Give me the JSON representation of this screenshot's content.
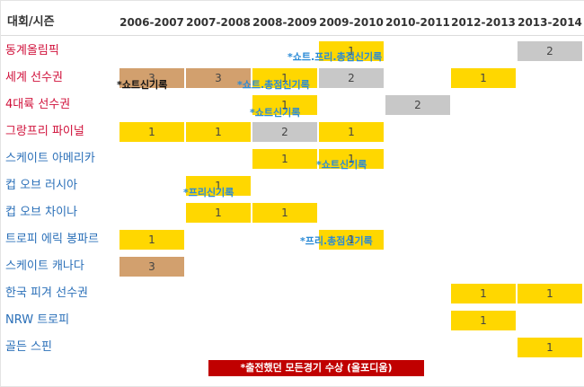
{
  "table": {
    "corner_label": "대회/시즌",
    "seasons": [
      "2006-2007",
      "2007-2008",
      "2008-2009",
      "2009-2010",
      "2010-2011",
      "2012-2013",
      "2013-2014"
    ],
    "rows": [
      {
        "name": "동계올림픽",
        "name_color": "#d0103a",
        "cells": {
          "2009-2010": {
            "value": "1",
            "medal": "gold"
          },
          "2013-2014": {
            "value": "2",
            "medal": "silver"
          }
        }
      },
      {
        "name": "세계 선수권",
        "name_color": "#d0103a",
        "cells": {
          "2006-2007": {
            "value": "3",
            "medal": "bronze"
          },
          "2007-2008": {
            "value": "3",
            "medal": "bronze"
          },
          "2008-2009": {
            "value": "1",
            "medal": "gold"
          },
          "2009-2010": {
            "value": "2",
            "medal": "silver"
          },
          "2012-2013": {
            "value": "1",
            "medal": "gold"
          }
        }
      },
      {
        "name": "4대륙 선수권",
        "name_color": "#d0103a",
        "cells": {
          "2008-2009": {
            "value": "1",
            "medal": "gold"
          },
          "2010-2011": {
            "value": "2",
            "medal": "silver"
          }
        }
      },
      {
        "name": "그랑프리 파이널",
        "name_color": "#d0103a",
        "cells": {
          "2006-2007": {
            "value": "1",
            "medal": "gold"
          },
          "2007-2008": {
            "value": "1",
            "medal": "gold"
          },
          "2008-2009": {
            "value": "2",
            "medal": "silver"
          },
          "2009-2010": {
            "value": "1",
            "medal": "gold"
          }
        }
      },
      {
        "name": "스케이트 아메리카",
        "name_color": "#2a6fb8",
        "cells": {
          "2008-2009": {
            "value": "1",
            "medal": "gold"
          },
          "2009-2010": {
            "value": "1",
            "medal": "gold"
          }
        }
      },
      {
        "name": "컵 오브 러시아",
        "name_color": "#2a6fb8",
        "cells": {
          "2007-2008": {
            "value": "1",
            "medal": "gold"
          }
        }
      },
      {
        "name": "컵 오브 차이나",
        "name_color": "#2a6fb8",
        "cells": {
          "2007-2008": {
            "value": "1",
            "medal": "gold"
          },
          "2008-2009": {
            "value": "1",
            "medal": "gold"
          }
        }
      },
      {
        "name": "트로피 에릭 봉파르",
        "name_color": "#2a6fb8",
        "cells": {
          "2006-2007": {
            "value": "1",
            "medal": "gold"
          },
          "2009-2010": {
            "value": "1",
            "medal": "gold"
          }
        }
      },
      {
        "name": "스케이트 캐나다",
        "name_color": "#2a6fb8",
        "cells": {
          "2006-2007": {
            "value": "3",
            "medal": "bronze"
          }
        }
      },
      {
        "name": "한국 피겨 선수권",
        "name_color": "#2a6fb8",
        "cells": {
          "2012-2013": {
            "value": "1",
            "medal": "gold"
          },
          "2013-2014": {
            "value": "1",
            "medal": "gold"
          }
        }
      },
      {
        "name": "NRW 트로피",
        "name_color": "#2a6fb8",
        "cells": {
          "2012-2013": {
            "value": "1",
            "medal": "gold"
          }
        }
      },
      {
        "name": "골든 스핀",
        "name_color": "#2a6fb8",
        "cells": {
          "2013-2014": {
            "value": "1",
            "medal": "gold"
          }
        }
      }
    ]
  },
  "annotations": [
    {
      "id": "olympics-record",
      "text": "*쇼트.프리.총점신기록",
      "color": "#2a8ad6"
    },
    {
      "id": "worlds-short-record",
      "text": "*쇼트신기록",
      "color": "#111111"
    },
    {
      "id": "worlds-record",
      "text": "*쇼트.총점신기록",
      "color": "#2a8ad6"
    },
    {
      "id": "fourcc-record",
      "text": "*쇼트신기록",
      "color": "#2a8ad6"
    },
    {
      "id": "skate-america-record",
      "text": "*쇼트신기록",
      "color": "#2a8ad6"
    },
    {
      "id": "cup-russia-record",
      "text": "*프리신기록",
      "color": "#2a8ad6"
    },
    {
      "id": "teb-record",
      "text": "*프리.총점신기록",
      "color": "#2a8ad6"
    }
  ],
  "legend": {
    "text": "*출전했던 모든경기 수상 (올포디움)",
    "background": "#c00000"
  },
  "colors": {
    "gold": "#ffd700",
    "silver": "#c8c8c8",
    "bronze": "#d2a06e"
  }
}
